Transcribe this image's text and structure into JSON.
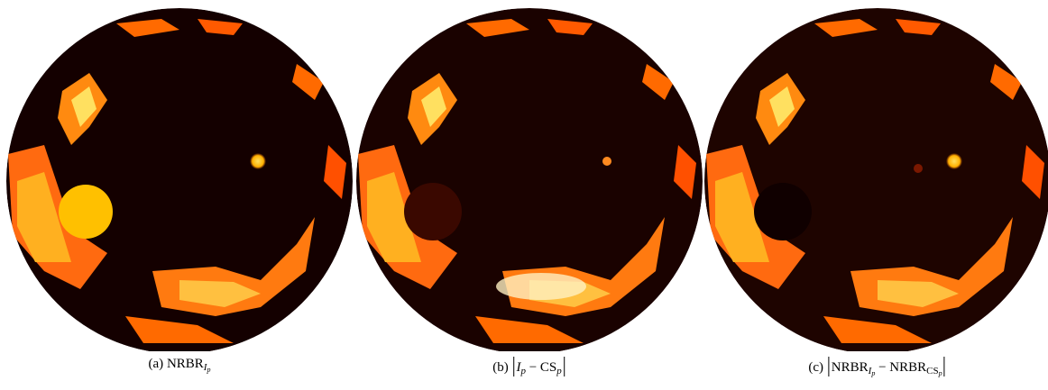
{
  "panels": [
    {
      "label": "(a)",
      "caption": [
        "NRBR",
        "I",
        "p"
      ]
    },
    {
      "label": "(b)",
      "caption": [
        "I",
        "p",
        "−",
        "CS",
        "p"
      ]
    },
    {
      "label": "(c)",
      "caption": [
        "NRBR",
        "I",
        "p",
        "−",
        "NRBR",
        "CS",
        "p"
      ]
    }
  ]
}
